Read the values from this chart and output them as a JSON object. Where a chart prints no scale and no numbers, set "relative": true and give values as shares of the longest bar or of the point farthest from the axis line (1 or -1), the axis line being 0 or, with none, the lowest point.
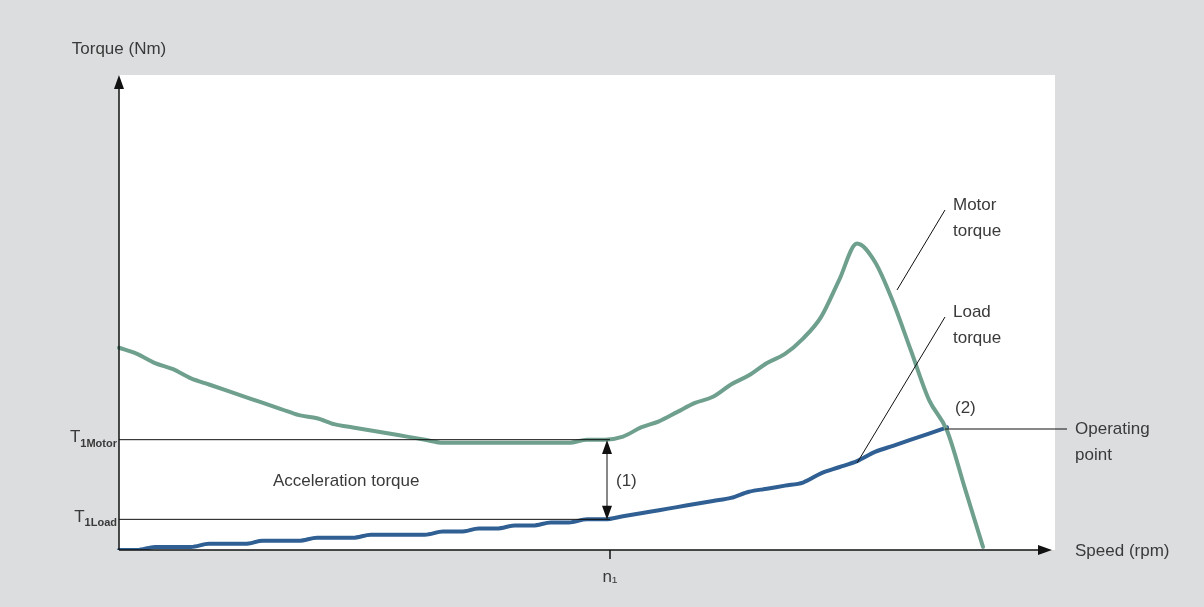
{
  "chart_data": {
    "type": "line",
    "relative": true,
    "xlabel": "Speed (rpm)",
    "categories": [
      null,
      null,
      null,
      null,
      null,
      null,
      null,
      null,
      null,
      null,
      null,
      null,
      null,
      null,
      null,
      null,
      null,
      null,
      null,
      null,
      null,
      null,
      null,
      null,
      null,
      null,
      null,
      null,
      null,
      null,
      null,
      null,
      null,
      null,
      null,
      null,
      null,
      null,
      null,
      null,
      null,
      null,
      null,
      null,
      null,
      null,
      null,
      null,
      null,
      null,
      null,
      null
    ],
    "series": [
      {
        "name": "Motor torque",
        "color": "#6fa08e",
        "values": [
          0.66,
          0.64,
          0.61,
          0.59,
          0.56,
          0.54,
          0.52,
          0.5,
          0.48,
          0.46,
          0.44,
          0.43,
          0.41,
          0.4,
          0.39,
          0.38,
          0.37,
          0.36,
          0.35,
          0.35,
          0.35,
          0.35,
          0.35,
          0.35,
          0.35,
          0.35,
          0.36,
          0.36,
          0.37,
          0.4,
          0.42,
          0.45,
          0.48,
          0.5,
          0.54,
          0.57,
          0.61,
          0.64,
          0.69,
          0.76,
          0.88,
          1,
          0.94,
          0.81,
          0.65,
          0.49,
          0.39,
          0.2,
          0.01,
          null,
          null,
          null
        ]
      },
      {
        "name": "Load torque",
        "color": "#2f5f93",
        "values": [
          0.0,
          0.0,
          0.01,
          0.01,
          0.01,
          0.02,
          0.02,
          0.02,
          0.03,
          0.03,
          0.03,
          0.04,
          0.04,
          0.04,
          0.05,
          0.05,
          0.05,
          0.05,
          0.06,
          0.06,
          0.07,
          0.07,
          0.08,
          0.08,
          0.09,
          0.09,
          0.1,
          0.1,
          0.11,
          0.12,
          0.13,
          0.14,
          0.15,
          0.16,
          0.17,
          0.19,
          0.2,
          0.21,
          0.22,
          0.25,
          0.27,
          0.29,
          0.32,
          0.34,
          0.36,
          0.38,
          0.4,
          null,
          null,
          null,
          null,
          null
        ]
      }
    ],
    "ref_lines": [
      {
        "axis": "y",
        "value": 0.36,
        "label": "T$_{1Motor}$"
      },
      {
        "axis": "y",
        "value": 0.1,
        "label": "T$_{1Load}$"
      }
    ],
    "annotations": [
      "Acceleration torque",
      "(1)",
      "(2)",
      "Operating point",
      "n₁",
      "Torque (Nm)"
    ],
    "legend": false,
    "marker": "none",
    "line_style": "solid"
  }
}
